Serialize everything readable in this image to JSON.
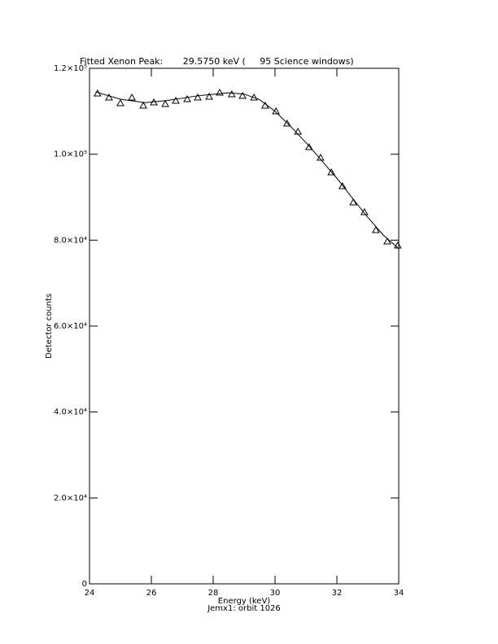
{
  "chart_data": {
    "type": "scatter",
    "title": "Fitted Xenon Peak:       29.5750 keV (     95 Science windows)",
    "x_label": "Energy (keV)",
    "subtitle": "Jemx1: orbit 1026",
    "y_label": "Detector counts",
    "xlim": [
      24,
      34
    ],
    "xticks": [
      24,
      26,
      28,
      30,
      32,
      34
    ],
    "ylim": [
      0,
      120000
    ],
    "yticks": [
      0,
      {
        "value": 20000,
        "label": "2.0×10⁴"
      },
      {
        "value": 40000,
        "label": "4.0×10⁴"
      },
      {
        "value": 60000,
        "label": "6.0×10⁴"
      },
      {
        "value": 80000,
        "label": "8.0×10⁴"
      },
      {
        "value": 100000,
        "label": "1.0×10⁵"
      },
      {
        "value": 120000,
        "label": "1.2×10⁵"
      }
    ],
    "points": {
      "x": [
        24.26,
        24.63,
        25.0,
        25.37,
        25.74,
        26.08,
        26.45,
        26.79,
        27.16,
        27.5,
        27.87,
        28.21,
        28.6,
        28.95,
        29.32,
        29.68,
        30.03,
        30.39,
        30.74,
        31.1,
        31.47,
        31.82,
        32.18,
        32.53,
        32.89,
        33.26,
        33.63,
        33.97
      ],
      "values": [
        114130,
        113180,
        111860,
        113180,
        111290,
        112050,
        111670,
        112430,
        112810,
        113180,
        113370,
        114320,
        113940,
        113560,
        113180,
        111290,
        109970,
        107130,
        105240,
        101640,
        99180,
        95770,
        92550,
        88770,
        86500,
        82330,
        79680,
        78740
      ]
    },
    "fit": {
      "x": [
        24.2,
        25,
        25.8,
        26.5,
        27.5,
        28.5,
        29,
        29.5,
        30,
        30.5,
        31,
        31.5,
        32,
        32.5,
        33,
        33.5,
        34
      ],
      "values": [
        114500,
        112800,
        112000,
        112500,
        113600,
        114300,
        114000,
        112700,
        110000,
        106500,
        102700,
        98600,
        94400,
        89800,
        85300,
        81200,
        78000
      ]
    }
  }
}
